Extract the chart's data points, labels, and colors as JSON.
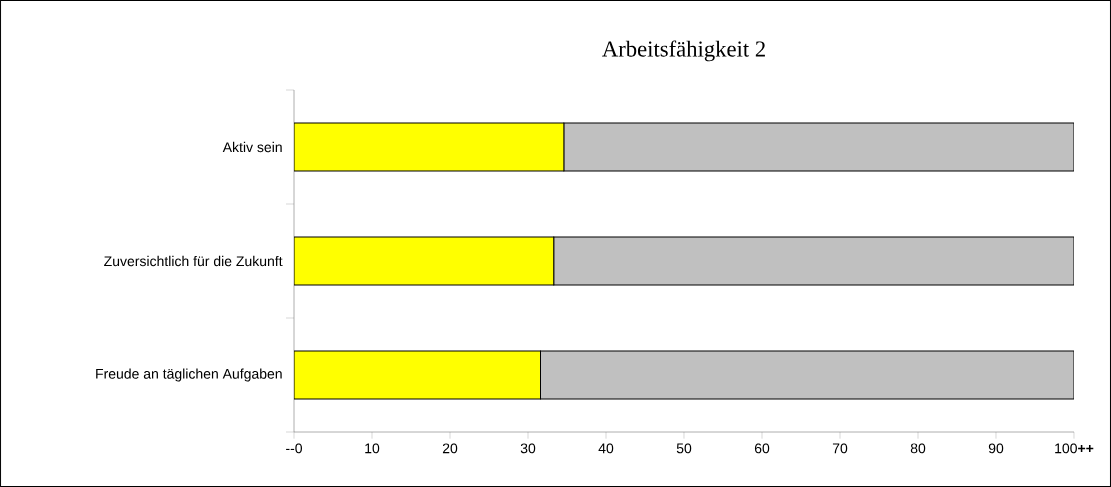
{
  "chart_data": {
    "type": "bar",
    "orientation": "horizontal",
    "stacked": true,
    "title": "Arbeitsfähigkeit 2",
    "categories": [
      "Aktiv sein",
      "Zuversichtlich für die Zukunft",
      "Freude an täglichen Aufgaben"
    ],
    "series": [
      {
        "color": "#ffff00",
        "values": [
          34.6,
          33.3,
          31.6
        ]
      },
      {
        "color": "#c0c0c0",
        "values": [
          65.4,
          66.7,
          68.4
        ]
      }
    ],
    "xlim": [
      0,
      100
    ],
    "xticks": [
      {
        "value": 0,
        "label": "--0"
      },
      10,
      20,
      30,
      40,
      50,
      60,
      70,
      80,
      90,
      {
        "value": 100,
        "label": "100**++**"
      }
    ],
    "legend": false,
    "grid": false
  }
}
